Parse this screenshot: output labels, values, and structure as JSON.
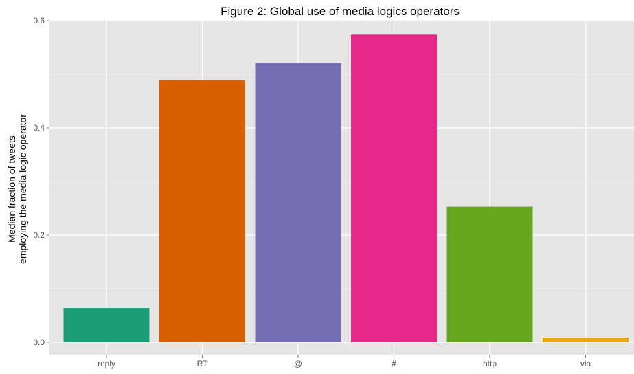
{
  "chart_data": {
    "type": "bar",
    "title": "Figure 2: Global use of media logics operators",
    "ylabel_lines": [
      "Median fraction of tweets",
      "employing the media logic operator"
    ],
    "xlabel": "",
    "categories": [
      "reply",
      "RT",
      "@",
      "#",
      "http",
      "via"
    ],
    "values": [
      0.064,
      0.489,
      0.521,
      0.574,
      0.253,
      0.009
    ],
    "colors": [
      "#1b9e77",
      "#d95f02",
      "#7570b3",
      "#e7298a",
      "#66a61e",
      "#e6ab02"
    ],
    "ylim": [
      0,
      0.6
    ],
    "yticks": [
      "0.0",
      "0.2",
      "0.4",
      "0.6"
    ],
    "grid": true,
    "legend": "none"
  }
}
